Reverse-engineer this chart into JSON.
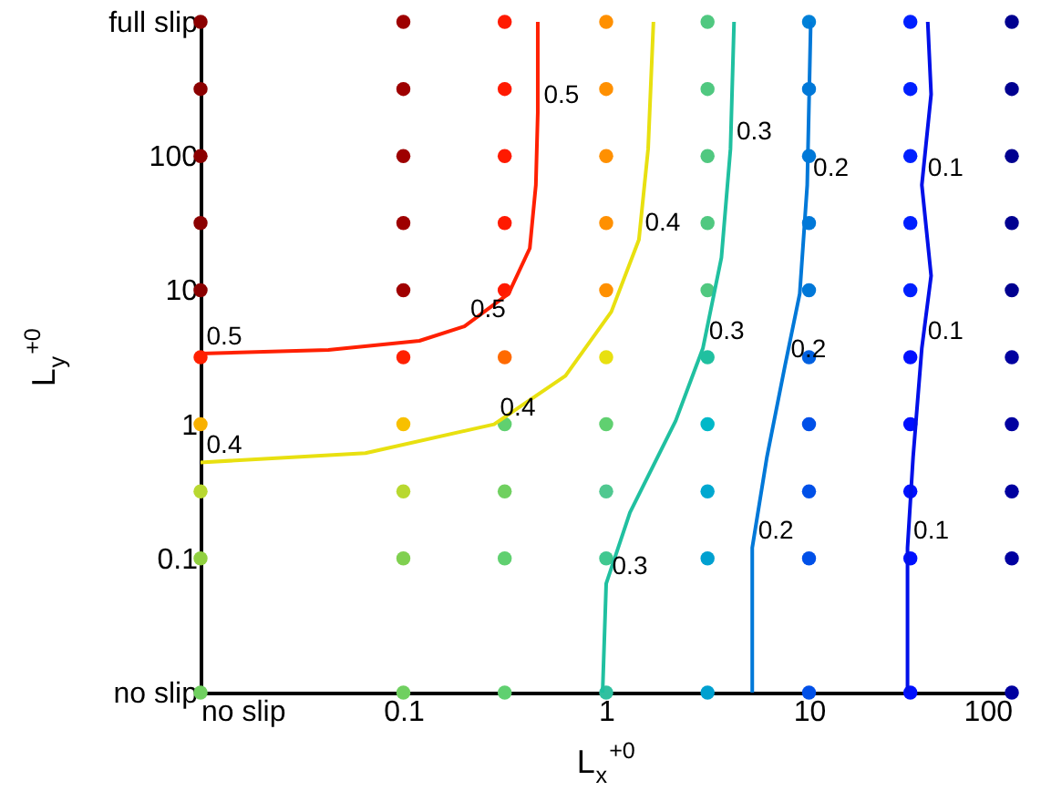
{
  "chart_data": {
    "type": "scatter",
    "xlabel": "L$_{x}$$^{+0}$",
    "ylabel": "L$_{y}$$^{+0}$",
    "log": "xy",
    "grid": false,
    "xlim": [
      0.01,
      100
    ],
    "ylim": [
      0.01,
      1000
    ],
    "xticks": [
      {
        "value": 0.01,
        "label": "no slip"
      },
      0.1,
      1,
      10,
      100
    ],
    "yticks": [
      {
        "value": 0.01,
        "label": "no slip"
      },
      0.1,
      1,
      10,
      100,
      {
        "value": 1000,
        "label": "full slip"
      }
    ],
    "series": [
      {
        "marker": "circle",
        "x": [
          0.01,
          0.1,
          0.316,
          1,
          3.16,
          10,
          31.6,
          100,
          0.01,
          0.1,
          0.316,
          1,
          3.16,
          10,
          31.6,
          100,
          0.01,
          0.1,
          0.316,
          1,
          3.16,
          10,
          31.6,
          100,
          0.01,
          0.1,
          0.316,
          1,
          3.16,
          10,
          31.6,
          100,
          0.01,
          0.1,
          0.316,
          1,
          3.16,
          10,
          31.6,
          100,
          0.01,
          0.1,
          0.316,
          1,
          3.16,
          10,
          31.6,
          100,
          0.01,
          0.1,
          0.316,
          1,
          3.16,
          10,
          31.6,
          100,
          0.01,
          0.1,
          0.316,
          1,
          3.16,
          10,
          31.6,
          100,
          0.01,
          0.1,
          0.316,
          1,
          3.16,
          10,
          31.6,
          100,
          0.01,
          0.1,
          0.316,
          1,
          3.16,
          10,
          31.6,
          100
        ],
        "values": [
          1000,
          1000,
          1000,
          1000,
          1000,
          1000,
          1000,
          1000,
          316,
          316,
          316,
          316,
          316,
          316,
          316,
          316,
          100,
          100,
          100,
          100,
          100,
          100,
          100,
          100,
          31.6,
          31.6,
          31.6,
          31.6,
          31.6,
          31.6,
          31.6,
          31.6,
          10,
          10,
          10,
          10,
          10,
          10,
          10,
          10,
          3.16,
          3.16,
          3.16,
          3.16,
          3.16,
          3.16,
          3.16,
          3.16,
          1,
          1,
          1,
          1,
          1,
          1,
          1,
          1,
          0.316,
          0.316,
          0.316,
          0.316,
          0.316,
          0.316,
          0.316,
          0.316,
          0.1,
          0.1,
          0.1,
          0.1,
          0.1,
          0.1,
          0.1,
          0.1,
          0.01,
          0.01,
          0.01,
          0.01,
          0.01,
          0.01,
          0.01,
          0.01
        ],
        "colors": [
          "#8b0000",
          "#9e0000",
          "#ff1a00",
          "#ff9000",
          "#50c880",
          "#0080d8",
          "#0020ff",
          "#000090",
          "#8b0000",
          "#9e0000",
          "#ff1a00",
          "#ff9000",
          "#50c880",
          "#0078d8",
          "#0020ff",
          "#000090",
          "#8b0000",
          "#9e0000",
          "#ff1a00",
          "#ff9000",
          "#50c880",
          "#0078d8",
          "#0020ff",
          "#000090",
          "#8b0000",
          "#9e0000",
          "#ff1a00",
          "#ff9000",
          "#50c880",
          "#0078d8",
          "#0020ff",
          "#000090",
          "#8b0000",
          "#a00000",
          "#ff1a00",
          "#ff9000",
          "#50c880",
          "#0078d8",
          "#0020ff",
          "#000090",
          "#ff2000",
          "#ff2000",
          "#ff6a00",
          "#e8e010",
          "#20c0a0",
          "#0060e0",
          "#0010ff",
          "#0000a0",
          "#f8b000",
          "#f8c000",
          "#60d070",
          "#60d070",
          "#00b8c8",
          "#0050e8",
          "#0010ff",
          "#0000a0",
          "#b8d830",
          "#b8d830",
          "#70d060",
          "#50c890",
          "#00a8d0",
          "#0050e8",
          "#0010ff",
          "#0000a0",
          "#90d040",
          "#80d050",
          "#60d070",
          "#40c890",
          "#00a0d0",
          "#0050e8",
          "#0010ff",
          "#0000a0",
          "#70d060",
          "#70d060",
          "#60d070",
          "#30c0a0",
          "#00a0d0",
          "#0050e8",
          "#0010ff",
          "#0000a0"
        ]
      },
      {
        "type": "line",
        "color": "#ff2000",
        "x": [
          0.01,
          0.0427,
          0.12,
          0.2,
          0.33,
          0.42,
          0.45,
          0.46,
          0.46
        ],
        "values": [
          3.37,
          3.58,
          4.19,
          5.37,
          9.4,
          20.5,
          60.8,
          211,
          1000
        ]
      },
      {
        "type": "line",
        "color": "#e8e010",
        "x": [
          0.01,
          0.065,
          0.28,
          0.63,
          1.06,
          1.45,
          1.61,
          1.71
        ],
        "values": [
          0.52,
          0.61,
          1.0,
          2.3,
          6.9,
          23.8,
          113,
          1000
        ]
      },
      {
        "type": "line",
        "color": "#20c0a0",
        "x": [
          0.96,
          1,
          1.31,
          2.2,
          3.0,
          3.7,
          4.1,
          4.27
        ],
        "values": [
          0.01,
          0.065,
          0.22,
          1.06,
          3.7,
          17.5,
          113,
          1000
        ]
      },
      {
        "type": "line",
        "color": "#0078d8",
        "x": [
          5.25,
          5.25,
          6.2,
          7.6,
          9,
          9.8,
          10.2
        ],
        "values": [
          0.01,
          0.12,
          0.57,
          2.7,
          9.4,
          60.8,
          1000
        ]
      },
      {
        "type": "line",
        "color": "#0010e8",
        "x": [
          30.6,
          30.6,
          32.6,
          36,
          40,
          36,
          40,
          38.5
        ],
        "values": [
          0.01,
          0.12,
          0.57,
          3.7,
          12.8,
          60.8,
          288,
          1000
        ]
      }
    ],
    "annotations": [
      {
        "text": "0.5",
        "x": 0.01,
        "y": 3.37
      },
      {
        "text": "0.5",
        "x": 0.2,
        "y": 5.37
      },
      {
        "text": "0.5",
        "x": 0.46,
        "y": 211
      },
      {
        "text": "0.4",
        "x": 0.01,
        "y": 0.52
      },
      {
        "text": "0.4",
        "x": 0.28,
        "y": 1.0
      },
      {
        "text": "0.4",
        "x": 1.45,
        "y": 23.8
      },
      {
        "text": "0.3",
        "x": 1,
        "y": 0.065
      },
      {
        "text": "0.3",
        "x": 3.0,
        "y": 3.7
      },
      {
        "text": "0.3",
        "x": 4.1,
        "y": 113
      },
      {
        "text": "0.2",
        "x": 5.25,
        "y": 0.12
      },
      {
        "text": "0.2",
        "x": 7.6,
        "y": 2.7
      },
      {
        "text": "0.2",
        "x": 9.8,
        "y": 60.8
      },
      {
        "text": "0.1",
        "x": 30.6,
        "y": 0.12
      },
      {
        "text": "0.1",
        "x": 36,
        "y": 3.7
      },
      {
        "text": "0.1",
        "x": 36,
        "y": 60.8
      }
    ]
  }
}
